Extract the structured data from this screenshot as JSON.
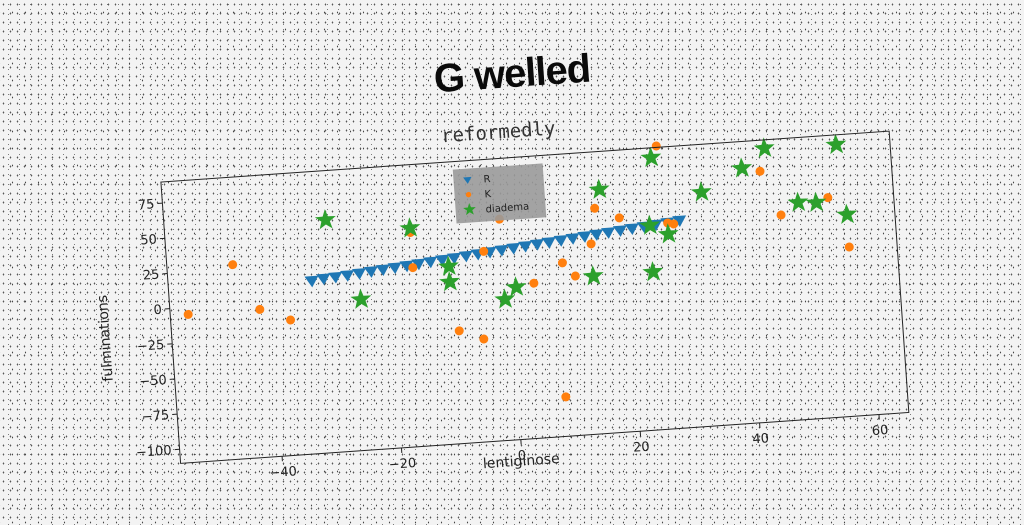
{
  "page": {
    "title": "G welled"
  },
  "chart_data": {
    "type": "scatter",
    "title": "reformedly",
    "xlabel": "lentiginose",
    "ylabel": "fulminations",
    "xlim": [
      -57,
      65
    ],
    "ylim": [
      -110,
      90
    ],
    "xticks": [
      -40,
      -20,
      0,
      20,
      40,
      60
    ],
    "yticks": [
      -100,
      -75,
      -50,
      -25,
      0,
      25,
      50,
      75
    ],
    "legend_position": "top-center",
    "series": [
      {
        "name": "R",
        "marker": "triangle-down",
        "color": "#1f77b4",
        "x": [
          -33.0,
          -31.0,
          -29.0,
          -27.0,
          -25.0,
          -23.0,
          -21.0,
          -19.0,
          -17.0,
          -15.0,
          -13.0,
          -11.0,
          -9.0,
          -7.0,
          -5.0,
          -3.0,
          -1.0,
          1.0,
          3.0,
          5.0,
          7.0,
          9.0,
          11.0,
          13.0,
          15.0,
          17.0,
          19.0,
          21.0,
          23.0,
          25.0,
          27.0,
          29.0
        ],
        "y": [
          13.0,
          14.0,
          14.5,
          15.2,
          16.0,
          16.8,
          17.5,
          18.3,
          19.0,
          19.8,
          20.6,
          21.4,
          22.2,
          23.0,
          23.8,
          24.6,
          25.4,
          26.2,
          27.0,
          27.8,
          28.6,
          29.4,
          30.2,
          31.0,
          31.8,
          32.6,
          33.4,
          34.2,
          35.0,
          35.8,
          36.6,
          37.5
        ]
      },
      {
        "name": "K",
        "marker": "circle",
        "color": "#ff7f0e",
        "x": [
          -54,
          -46,
          -42,
          -37,
          -16,
          -16,
          -9,
          -5,
          -4,
          -1,
          4,
          8,
          9,
          11,
          14,
          15,
          19,
          26,
          27,
          28,
          43,
          46,
          54,
          57
        ],
        "y": [
          -5,
          28,
          -5,
          -14,
          42,
          17,
          -30,
          -37,
          25,
          47,
          0,
          -82,
          13,
          3,
          25,
          50,
          42,
          91,
          36,
          35,
          68,
          36,
          46,
          10
        ]
      },
      {
        "name": "diadema",
        "marker": "star",
        "color": "#2ca02c",
        "x": [
          -30,
          -25,
          -16,
          -10,
          -10,
          -1,
          1,
          14,
          16,
          24,
          24,
          25,
          27,
          33,
          40,
          44,
          49,
          52,
          56,
          57
        ],
        "y": [
          55,
          -3,
          45,
          16,
          5,
          -10,
          -2,
          2,
          63,
          35,
          2,
          83,
          28,
          56,
          71,
          84,
          44,
          43,
          83,
          33
        ]
      }
    ]
  }
}
